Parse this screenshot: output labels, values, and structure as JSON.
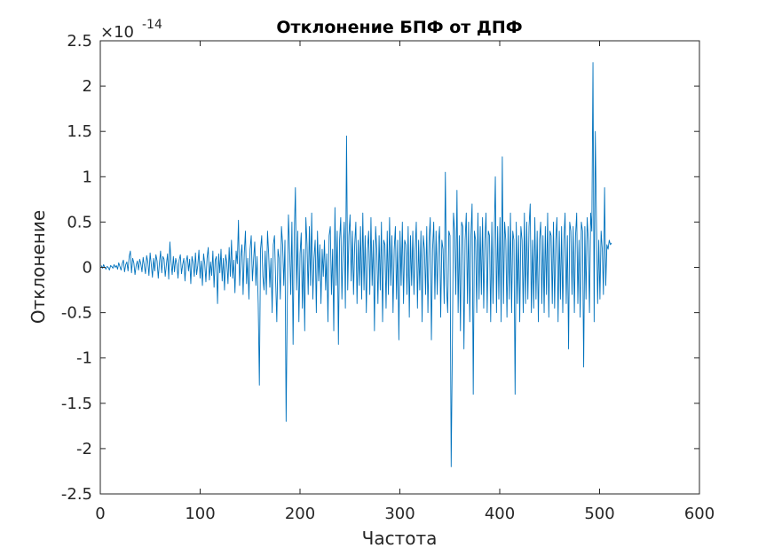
{
  "chart_data": {
    "type": "line",
    "title": "Отклонение БПФ от ДПФ",
    "xlabel": "Частота",
    "ylabel": "Отклонение",
    "xlim": [
      0,
      600
    ],
    "ylim": [
      -2.5e-14,
      2.5e-14
    ],
    "y_exponent_label": {
      "base": "×10",
      "power": "-14"
    },
    "x_ticks": [
      0,
      100,
      200,
      300,
      400,
      500,
      600
    ],
    "x_tick_labels": [
      "0",
      "100",
      "200",
      "300",
      "400",
      "500",
      "600"
    ],
    "y_ticks": [
      -2.5,
      -2,
      -1.5,
      -1,
      -0.5,
      0,
      0.5,
      1,
      1.5,
      2,
      2.5
    ],
    "y_tick_labels": [
      "-2.5",
      "-2",
      "-1.5",
      "-1",
      "-0.5",
      "0",
      "0.5",
      "1",
      "1.5",
      "2",
      "2.5"
    ],
    "grid": false,
    "series": [
      {
        "color": "#0072BD",
        "x_start": 1,
        "x_end": 512,
        "values_e14": [
          0.02,
          -0.01,
          0.03,
          0.0,
          -0.02,
          0.01,
          0.0,
          -0.03,
          0.02,
          0.01,
          -0.01,
          0.03,
          0.0,
          0.02,
          -0.02,
          0.05,
          0.01,
          -0.03,
          0.04,
          0.08,
          -0.05,
          0.03,
          0.06,
          -0.04,
          0.12,
          0.18,
          -0.06,
          0.1,
          0.05,
          -0.08,
          0.02,
          0.07,
          -0.03,
          0.09,
          0.04,
          -0.05,
          0.11,
          0.02,
          -0.07,
          0.13,
          0.06,
          -0.09,
          0.16,
          0.03,
          -0.11,
          0.1,
          -0.04,
          0.14,
          0.07,
          -0.12,
          0.05,
          0.18,
          -0.06,
          0.12,
          0.09,
          -0.1,
          0.03,
          0.15,
          -0.13,
          0.28,
          0.06,
          -0.08,
          0.12,
          -0.05,
          0.1,
          0.04,
          -0.12,
          0.08,
          0.14,
          -0.07,
          0.03,
          0.1,
          -0.15,
          0.06,
          0.13,
          -0.04,
          0.09,
          -0.18,
          0.12,
          0.05,
          -0.1,
          0.16,
          -0.08,
          0.02,
          0.19,
          -0.12,
          0.07,
          -0.2,
          0.15,
          0.04,
          -0.16,
          0.1,
          0.22,
          -0.14,
          0.06,
          -0.09,
          0.18,
          -0.22,
          0.08,
          0.12,
          -0.4,
          0.15,
          -0.06,
          0.2,
          -0.15,
          0.1,
          -0.25,
          0.14,
          0.05,
          -0.18,
          0.22,
          -0.1,
          0.3,
          -0.12,
          0.08,
          -0.28,
          0.18,
          0.04,
          0.52,
          -0.2,
          0.12,
          0.25,
          -0.3,
          0.15,
          0.4,
          -0.18,
          0.1,
          -0.35,
          0.2,
          0.35,
          -0.15,
          0.08,
          0.28,
          -0.2,
          0.12,
          -0.4,
          -1.3,
          0.2,
          0.35,
          -0.1,
          -0.25,
          0.18,
          -0.3,
          0.4,
          0.15,
          -0.22,
          0.1,
          -0.5,
          0.25,
          0.35,
          -0.15,
          -0.6,
          0.2,
          0.1,
          -0.35,
          0.45,
          0.25,
          -0.2,
          0.3,
          -1.7,
          -0.4,
          0.58,
          0.2,
          -0.3,
          0.5,
          -0.85,
          0.35,
          0.88,
          -0.25,
          0.4,
          -0.6,
          0.15,
          0.38,
          -0.45,
          0.2,
          -0.7,
          0.55,
          0.25,
          -0.3,
          0.45,
          -0.2,
          0.6,
          -0.35,
          0.1,
          0.3,
          -0.5,
          0.4,
          -0.15,
          0.25,
          -0.4,
          0.2,
          -0.1,
          0.3,
          -0.25,
          0.15,
          -0.6,
          0.35,
          0.45,
          -0.3,
          0.2,
          -0.7,
          0.66,
          -0.2,
          0.4,
          -0.85,
          0.3,
          0.55,
          -0.35,
          0.2,
          0.5,
          -0.45,
          1.45,
          -0.25,
          0.35,
          0.58,
          -0.15,
          0.4,
          -0.3,
          0.25,
          0.5,
          -0.4,
          0.3,
          -0.2,
          0.45,
          -0.35,
          0.6,
          -0.25,
          0.35,
          -0.5,
          0.2,
          0.4,
          -0.3,
          0.55,
          -0.2,
          0.3,
          -0.7,
          0.45,
          0.2,
          -0.4,
          0.35,
          -0.25,
          0.5,
          -0.6,
          0.3,
          0.25,
          -0.45,
          0.4,
          -0.3,
          0.55,
          -0.2,
          0.35,
          -0.5,
          0.2,
          0.45,
          -0.35,
          0.3,
          -0.8,
          0.4,
          -0.2,
          0.5,
          -0.4,
          0.3,
          0.25,
          -0.3,
          0.45,
          -0.55,
          0.35,
          -0.2,
          0.4,
          -0.3,
          0.2,
          0.5,
          -0.45,
          0.3,
          -0.25,
          0.4,
          -0.6,
          0.35,
          0.2,
          -0.3,
          0.45,
          -0.5,
          0.3,
          0.55,
          -0.8,
          0.2,
          0.5,
          -0.35,
          0.4,
          -0.3,
          0.25,
          0.45,
          -0.55,
          0.3,
          0.2,
          -0.4,
          1.05,
          -0.2,
          -0.5,
          0.4,
          0.35,
          -2.2,
          -0.9,
          0.6,
          0.4,
          -0.3,
          0.85,
          -0.5,
          0.35,
          -0.7,
          0.5,
          0.45,
          -0.9,
          0.3,
          0.6,
          -0.4,
          0.5,
          -0.6,
          0.35,
          0.7,
          -1.4,
          0.4,
          0.3,
          -0.5,
          0.6,
          -0.35,
          0.45,
          -0.3,
          0.55,
          -0.45,
          0.3,
          0.6,
          -0.5,
          0.4,
          0.35,
          -0.6,
          0.5,
          -0.4,
          0.3,
          1.0,
          -0.5,
          0.45,
          -0.35,
          0.55,
          -0.6,
          1.22,
          -0.4,
          0.5,
          0.3,
          -0.55,
          0.45,
          -0.35,
          0.6,
          -0.5,
          0.4,
          0.3,
          -1.4,
          0.5,
          -0.4,
          0.35,
          -0.6,
          0.45,
          0.3,
          -0.5,
          0.6,
          -0.4,
          0.5,
          -0.35,
          0.45,
          0.7,
          -0.5,
          0.3,
          -0.45,
          0.55,
          -0.35,
          0.4,
          -0.6,
          0.3,
          0.5,
          -0.4,
          0.35,
          -0.5,
          0.45,
          -0.3,
          0.6,
          -0.55,
          0.4,
          0.35,
          -0.4,
          0.5,
          -0.45,
          0.3,
          0.55,
          -0.6,
          0.4,
          -0.35,
          0.45,
          -0.5,
          0.3,
          0.6,
          -0.4,
          0.35,
          -0.9,
          0.5,
          0.4,
          -0.3,
          0.45,
          -0.5,
          0.35,
          0.6,
          -0.4,
          0.3,
          -0.55,
          0.5,
          0.4,
          -1.1,
          0.45,
          -0.35,
          0.55,
          0.3,
          -0.5,
          0.6,
          0.4,
          2.26,
          -0.6,
          1.5,
          0.5,
          -0.4,
          0.3,
          -0.35,
          0.4,
          0.2,
          -0.3,
          0.88,
          -0.2,
          0.25,
          0.2,
          0.3,
          0.25,
          0.27
        ]
      }
    ]
  }
}
